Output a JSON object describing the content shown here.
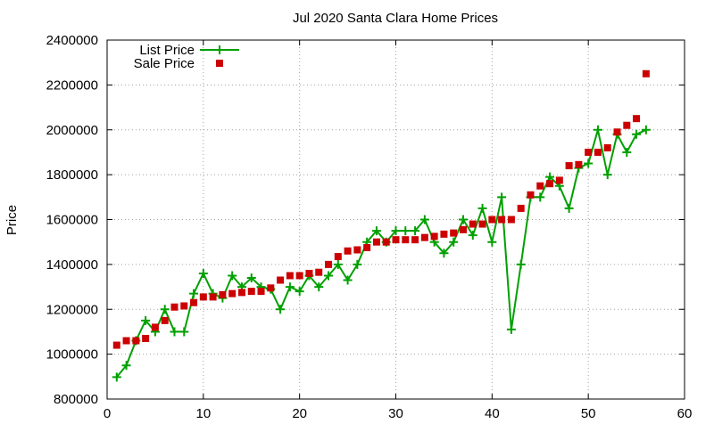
{
  "chart_data": {
    "type": "scatter",
    "title": "Jul 2020 Santa Clara Home Prices",
    "xlabel": "",
    "ylabel": "Price",
    "xlim": [
      0,
      60
    ],
    "ylim": [
      800000,
      2400000
    ],
    "xticks": [
      0,
      10,
      20,
      30,
      40,
      50,
      60
    ],
    "yticks": [
      800000,
      1000000,
      1200000,
      1400000,
      1600000,
      1800000,
      2000000,
      2200000,
      2400000
    ],
    "legend_position": "top-left",
    "grid": true,
    "series": [
      {
        "name": "List Price",
        "style": "line-with-plus-markers",
        "color": "#00a000",
        "x": [
          1,
          2,
          3,
          4,
          5,
          6,
          7,
          8,
          9,
          10,
          11,
          12,
          13,
          14,
          15,
          16,
          17,
          18,
          19,
          20,
          21,
          22,
          23,
          24,
          25,
          26,
          27,
          28,
          29,
          30,
          31,
          32,
          33,
          34,
          35,
          36,
          37,
          38,
          39,
          40,
          41,
          42,
          43,
          44,
          45,
          46,
          47,
          48,
          49,
          50,
          51,
          52,
          53,
          54,
          55,
          56
        ],
        "y": [
          898000,
          950000,
          1060000,
          1150000,
          1100000,
          1200000,
          1100000,
          1100000,
          1270000,
          1360000,
          1270000,
          1250000,
          1350000,
          1300000,
          1340000,
          1300000,
          1290000,
          1200000,
          1300000,
          1280000,
          1350000,
          1300000,
          1350000,
          1400000,
          1330000,
          1400000,
          1500000,
          1550000,
          1500000,
          1550000,
          1550000,
          1550000,
          1600000,
          1500000,
          1450000,
          1500000,
          1600000,
          1530000,
          1650000,
          1500000,
          1700000,
          1110000,
          1400000,
          1700000,
          1700000,
          1790000,
          1750000,
          1650000,
          1830000,
          1850000,
          2000000,
          1800000,
          1980000,
          1900000,
          1980000,
          2000000
        ]
      },
      {
        "name": "Sale Price",
        "style": "square-markers",
        "color": "#cc0000",
        "x": [
          1,
          2,
          3,
          4,
          5,
          6,
          7,
          8,
          9,
          10,
          11,
          12,
          13,
          14,
          15,
          16,
          17,
          18,
          19,
          20,
          21,
          22,
          23,
          24,
          25,
          26,
          27,
          28,
          29,
          30,
          31,
          32,
          33,
          34,
          35,
          36,
          37,
          38,
          39,
          40,
          41,
          42,
          43,
          44,
          45,
          46,
          47,
          48,
          49,
          50,
          51,
          52,
          53,
          54,
          55,
          56
        ],
        "y": [
          1040000,
          1060000,
          1060000,
          1070000,
          1120000,
          1150000,
          1210000,
          1215000,
          1230000,
          1255000,
          1255000,
          1265000,
          1270000,
          1275000,
          1280000,
          1280000,
          1295000,
          1330000,
          1350000,
          1350000,
          1360000,
          1365000,
          1400000,
          1435000,
          1460000,
          1465000,
          1475000,
          1500000,
          1500000,
          1510000,
          1510000,
          1510000,
          1520000,
          1525000,
          1535000,
          1540000,
          1555000,
          1580000,
          1580000,
          1600000,
          1600000,
          1600000,
          1650000,
          1710000,
          1750000,
          1760000,
          1775000,
          1840000,
          1845000,
          1900000,
          1900000,
          1920000,
          1990000,
          2020000,
          2050000,
          2250000
        ]
      }
    ]
  }
}
